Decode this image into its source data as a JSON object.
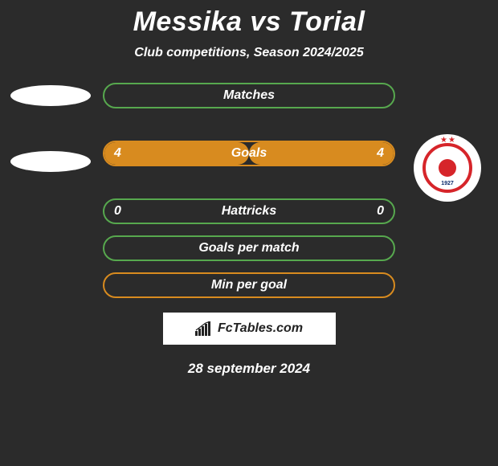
{
  "title": "Messika vs Torial",
  "subtitle": "Club competitions, Season 2024/2025",
  "date": "28 september 2024",
  "brand": "FcTables.com",
  "colors": {
    "green": "#57a84e",
    "orange": "#d88b1f",
    "background": "#2b2b2b",
    "badge_red": "#d6252a"
  },
  "left_team": {
    "placeholder": true
  },
  "right_team": {
    "badge_year": "1927"
  },
  "rows": [
    {
      "label": "Matches",
      "mode": "empty",
      "color": "green",
      "left": null,
      "right": null,
      "fill_left_pct": 0,
      "fill_right_pct": 0
    },
    {
      "label": "Goals",
      "mode": "filled",
      "color": "orange",
      "left": "4",
      "right": "4",
      "fill_left_pct": 50,
      "fill_right_pct": 50
    },
    {
      "label": "Hattricks",
      "mode": "filled",
      "color": "green",
      "left": "0",
      "right": "0",
      "fill_left_pct": 0,
      "fill_right_pct": 0
    },
    {
      "label": "Goals per match",
      "mode": "empty",
      "color": "green",
      "left": null,
      "right": null,
      "fill_left_pct": 0,
      "fill_right_pct": 0
    },
    {
      "label": "Min per goal",
      "mode": "empty",
      "color": "orange",
      "left": null,
      "right": null,
      "fill_left_pct": 0,
      "fill_right_pct": 0
    }
  ]
}
